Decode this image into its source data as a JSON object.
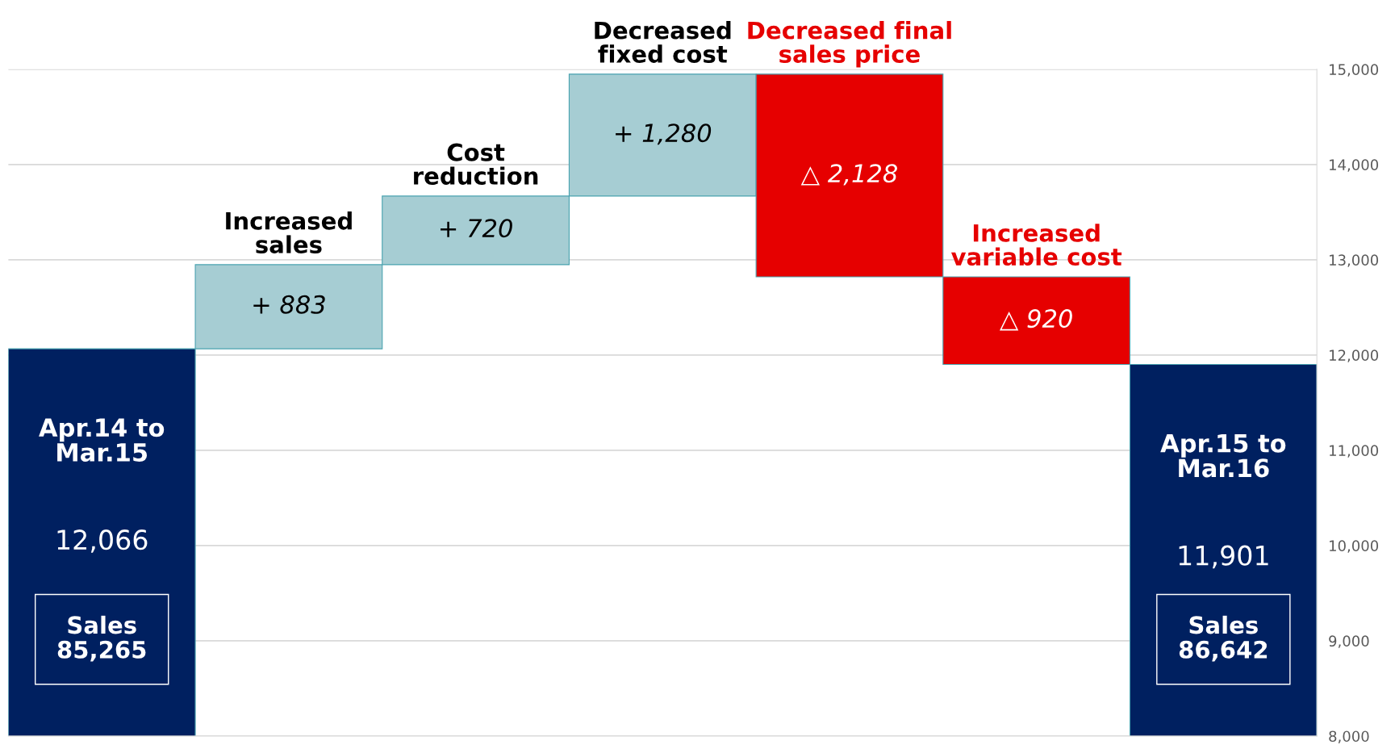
{
  "chart_data": {
    "type": "bar",
    "categories": [
      "Apr.14 to Mar.15",
      "Increased sales",
      "Cost reduction",
      "Decreased fixed cost",
      "Decreased final sales price",
      "Increased variable cost",
      "Apr.15 to Mar.16"
    ],
    "values": [
      12066,
      883,
      720,
      1280,
      -2128,
      -920,
      11901
    ],
    "base": [
      0,
      12066,
      12949,
      13669,
      14949,
      12821,
      0
    ],
    "colors": [
      "#002060",
      "#a6cdd3",
      "#a6cdd3",
      "#a6cdd3",
      "#e60000",
      "#e60000",
      "#002060"
    ],
    "value_labels": [
      "12,066",
      "+ 883",
      "+ 720",
      "+ 1,280",
      "△ 2,128",
      "△ 920",
      "11,901"
    ],
    "ylim": [
      8000,
      15000
    ],
    "yticks": [
      {
        "value": 8000,
        "label": "8,000"
      },
      {
        "value": 9000,
        "label": "9,000"
      },
      {
        "value": 10000,
        "label": "10,000"
      },
      {
        "value": 11000,
        "label": "11,000"
      },
      {
        "value": 12000,
        "label": "12,000"
      },
      {
        "value": 13000,
        "label": "13,000"
      },
      {
        "value": 14000,
        "label": "14,000"
      },
      {
        "value": 15000,
        "label": "15,000"
      }
    ],
    "grid": "y",
    "legend": false,
    "annotations": [
      "Sales\n85,265",
      "Sales\n86,642"
    ]
  }
}
